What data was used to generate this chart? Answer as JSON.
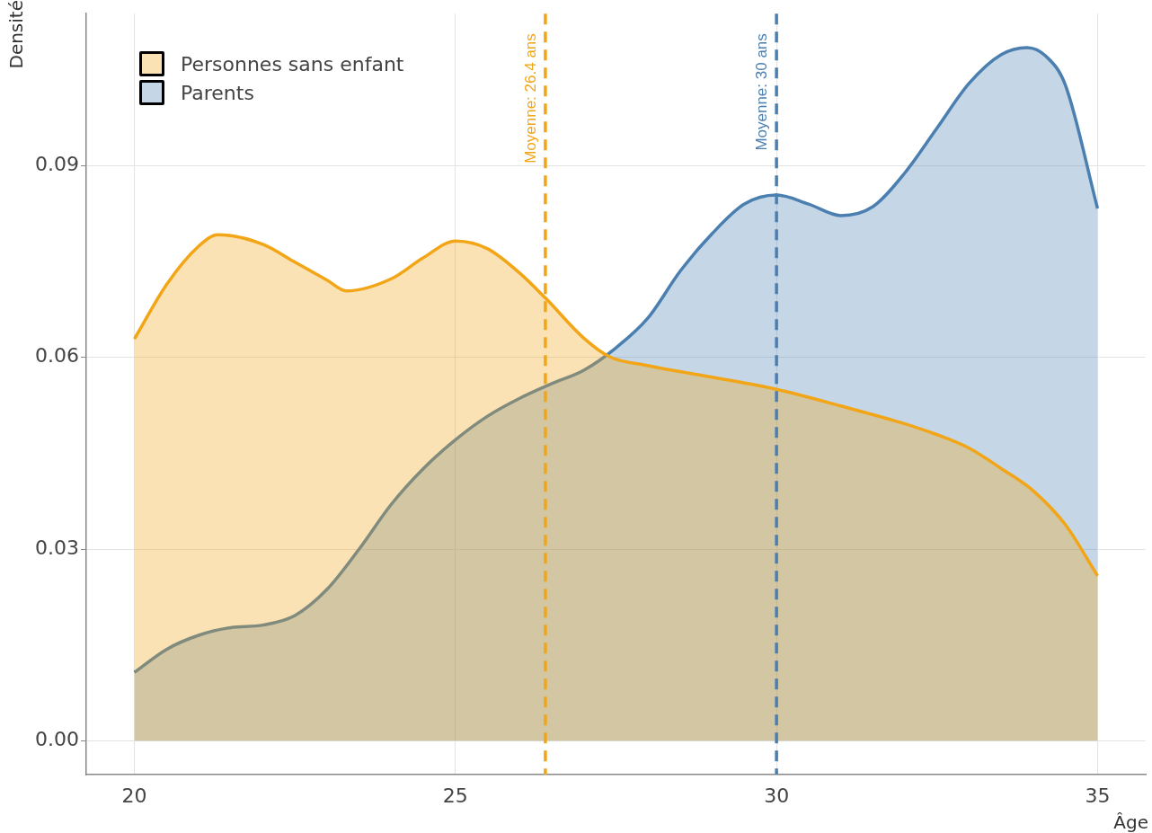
{
  "chart_data": {
    "type": "area",
    "xlabel": "Âge",
    "ylabel": "Densité",
    "xlim": [
      19.25,
      35.75
    ],
    "ylim": [
      -0.0053,
      0.1138
    ],
    "xticks": [
      20,
      25,
      30,
      35
    ],
    "yticks": [
      {
        "value": 0,
        "label": "0.00"
      },
      0.03,
      0.06,
      0.09
    ],
    "grid": true,
    "legend": "top left",
    "series": [
      {
        "name": "Personnes sans enfant",
        "color": "#f2a516",
        "x": [
          20,
          20.5,
          21,
          21.3,
          22,
          22.5,
          23,
          23.3,
          24,
          24.5,
          25,
          25.5,
          26,
          26.4,
          27,
          27.4,
          28,
          29,
          30,
          31,
          32,
          32.5,
          33,
          33.5,
          34,
          34.5,
          35
        ],
        "values": [
          0.0629,
          0.0714,
          0.0774,
          0.0792,
          0.0777,
          0.0749,
          0.0721,
          0.0704,
          0.0723,
          0.0756,
          0.0782,
          0.077,
          0.0732,
          0.0693,
          0.063,
          0.0601,
          0.0587,
          0.0569,
          0.055,
          0.0524,
          0.0496,
          0.0479,
          0.0458,
          0.0426,
          0.0391,
          0.0338,
          0.0258
        ]
      },
      {
        "name": "Parents",
        "color": "#4a7fb0",
        "x": [
          20,
          20.5,
          21,
          21.5,
          22,
          22.5,
          23,
          23.5,
          24,
          24.5,
          25,
          25.5,
          26,
          26.5,
          27,
          27.5,
          28,
          28.5,
          29,
          29.5,
          30,
          30.5,
          31,
          31.5,
          32,
          32.5,
          33,
          33.5,
          33.9,
          34.2,
          34.5,
          35
        ],
        "values": [
          0.0107,
          0.0143,
          0.0165,
          0.0177,
          0.0181,
          0.0196,
          0.0237,
          0.03,
          0.037,
          0.0426,
          0.0471,
          0.0508,
          0.0536,
          0.0559,
          0.058,
          0.0615,
          0.0662,
          0.0735,
          0.0794,
          0.084,
          0.0854,
          0.084,
          0.0822,
          0.0836,
          0.0889,
          0.0959,
          0.1029,
          0.1074,
          0.1085,
          0.1071,
          0.1026,
          0.0833
        ]
      }
    ],
    "ref_lines": [
      {
        "axis": "x",
        "value": 26.4,
        "label": "Moyenne: 26.4 ans",
        "color": "#f2a516",
        "line_style": "dashed"
      },
      {
        "axis": "x",
        "value": 30,
        "label": "Moyenne: 30 ans",
        "color": "#4a7fb0",
        "line_style": "dashed"
      }
    ]
  }
}
